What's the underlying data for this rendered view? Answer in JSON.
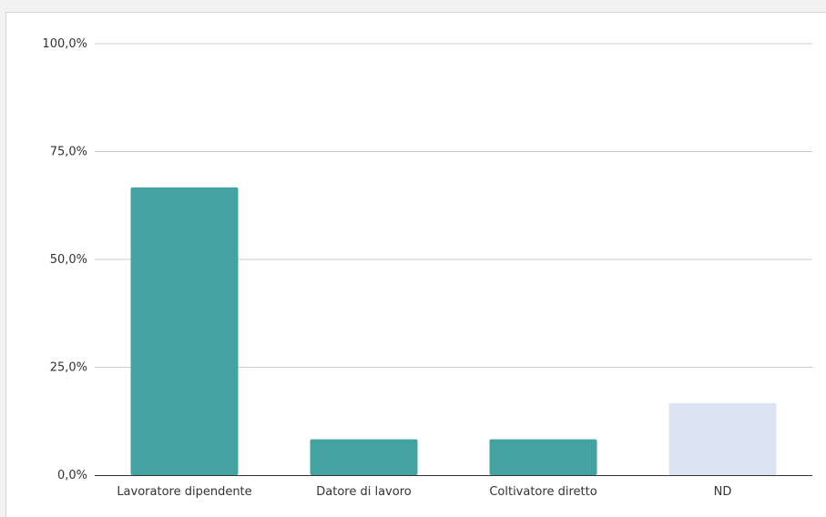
{
  "chart_data": {
    "type": "bar",
    "categories": [
      "Lavoratore dipendente",
      "Datore di lavoro",
      "Coltivatore diretto",
      "ND"
    ],
    "values": [
      66.7,
      8.3,
      8.3,
      16.7
    ],
    "colors": [
      "#42a3a0",
      "#42a3a0",
      "#42a3a0",
      "#dbe5f1"
    ],
    "yticks": [
      "0,0%",
      "25,0%",
      "50,0%",
      "75,0%",
      "100,0%"
    ],
    "ytick_values": [
      0,
      25,
      50,
      75,
      100
    ],
    "ylim": [
      0,
      100
    ],
    "grid": true,
    "gridline_color": "#cccccc",
    "axis_color": "#333333"
  }
}
